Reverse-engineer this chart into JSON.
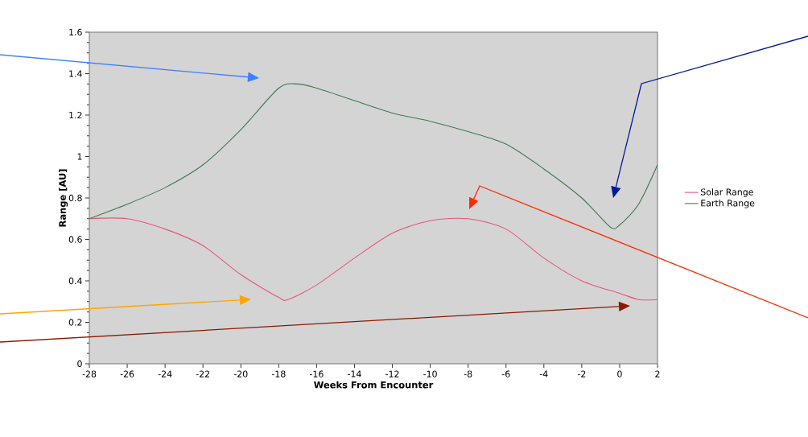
{
  "chart_data": {
    "type": "line",
    "xlabel": "Weeks From Encounter",
    "ylabel": "Range [AU]",
    "xlim": [
      -28,
      2
    ],
    "xticks": [
      -28,
      -26,
      -24,
      -22,
      -20,
      -18,
      -16,
      -14,
      -12,
      -10,
      -8,
      -6,
      -4,
      -2,
      0,
      2
    ],
    "ylim": [
      0,
      1.6
    ],
    "yticks": [
      0,
      0.2,
      0.4,
      0.6,
      0.8,
      1,
      1.2,
      1.4,
      1.6
    ],
    "legend": "right",
    "marker": "none",
    "line_style": "solid",
    "series": [
      {
        "name": "Solar Range",
        "color": "#e8557a",
        "x": [
          -28,
          -26,
          -24,
          -22,
          -20,
          -18,
          -17.5,
          -16,
          -14,
          -12,
          -10,
          -8,
          -6,
          -4,
          -2,
          0,
          1,
          2
        ],
        "values": [
          0.7,
          0.7,
          0.65,
          0.57,
          0.43,
          0.32,
          0.31,
          0.38,
          0.51,
          0.63,
          0.69,
          0.7,
          0.65,
          0.51,
          0.4,
          0.34,
          0.31,
          0.31
        ]
      },
      {
        "name": "Earth Range",
        "color": "#3c7a55",
        "x": [
          -28,
          -26,
          -24,
          -22,
          -20,
          -18,
          -17,
          -16,
          -14,
          -12,
          -10,
          -8,
          -6,
          -4,
          -2,
          -0.5,
          0,
          1,
          2
        ],
        "values": [
          0.7,
          0.77,
          0.85,
          0.96,
          1.13,
          1.33,
          1.35,
          1.33,
          1.27,
          1.21,
          1.17,
          1.12,
          1.06,
          0.94,
          0.8,
          0.66,
          0.67,
          0.77,
          0.96
        ]
      }
    ]
  }
}
